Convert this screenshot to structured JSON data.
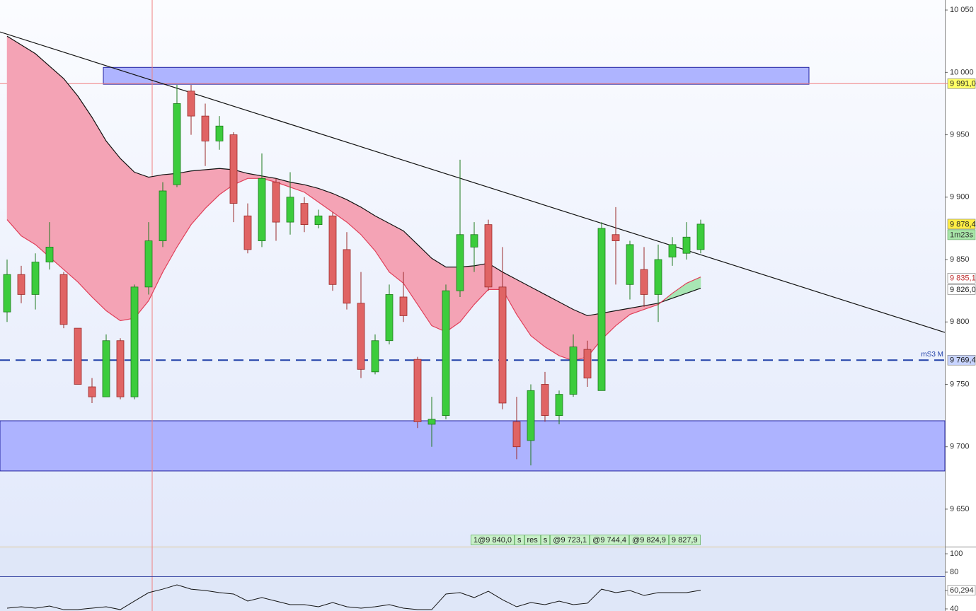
{
  "chart_data": [
    {
      "type": "candlestick",
      "categories": [
        null,
        null,
        null,
        null,
        null,
        null,
        null,
        null,
        null,
        null,
        null,
        null,
        null,
        null,
        null,
        null,
        null,
        null,
        null,
        null,
        null,
        null,
        null,
        null,
        null,
        null,
        null,
        null,
        null,
        null,
        null,
        null,
        null,
        null,
        null,
        null,
        null,
        null,
        null,
        null,
        null,
        null,
        null,
        null,
        null,
        null,
        null,
        null,
        null,
        null
      ],
      "open": [
        9808,
        9838,
        9822,
        9848,
        9838,
        9795,
        9748,
        9740,
        9785,
        9740,
        9828,
        9865,
        9910,
        9985,
        9965,
        9945,
        9950,
        9885,
        9865,
        9912,
        9880,
        9895,
        9878,
        9885,
        9858,
        9815,
        9760,
        9785,
        9820,
        9770,
        9718,
        9725,
        9825,
        9860,
        9878,
        9828,
        9720,
        9705,
        9750,
        9725,
        9742,
        9778,
        9745,
        9870,
        9830,
        9842,
        9822,
        9852,
        9855,
        9858
      ],
      "high": [
        9850,
        9845,
        9855,
        9880,
        9840,
        9795,
        9755,
        9790,
        9787,
        9830,
        9880,
        9912,
        9990,
        9990,
        9975,
        9965,
        9952,
        9895,
        9935,
        9915,
        9920,
        9900,
        9890,
        9888,
        9872,
        9840,
        9790,
        9830,
        9840,
        9772,
        9740,
        9830,
        9930,
        9880,
        9882,
        9860,
        9740,
        9750,
        9760,
        9745,
        9790,
        9785,
        9880,
        9892,
        9865,
        9860,
        9862,
        9868,
        9880,
        9882
      ],
      "low": [
        9800,
        9815,
        9810,
        9842,
        9795,
        9750,
        9735,
        9740,
        9738,
        9738,
        9822,
        9860,
        9908,
        9950,
        9925,
        9938,
        9880,
        9855,
        9860,
        9865,
        9870,
        9872,
        9875,
        9825,
        9810,
        9755,
        9758,
        9782,
        9800,
        9715,
        9700,
        9722,
        9820,
        9840,
        9825,
        9730,
        9690,
        9685,
        9720,
        9718,
        9740,
        9748,
        9745,
        9830,
        9818,
        9812,
        9800,
        9845,
        9850,
        9855
      ],
      "close": [
        9838,
        9822,
        9848,
        9860,
        9798,
        9750,
        9740,
        9785,
        9740,
        9828,
        9865,
        9905,
        9975,
        9965,
        9945,
        9957,
        9895,
        9858,
        9915,
        9880,
        9900,
        9878,
        9885,
        9830,
        9815,
        9762,
        9785,
        9822,
        9805,
        9720,
        9722,
        9825,
        9870,
        9870,
        9828,
        9735,
        9700,
        9745,
        9725,
        9742,
        9780,
        9755,
        9875,
        9865,
        9862,
        9822,
        9850,
        9862,
        9868,
        9878.4
      ],
      "up_color": "#3ccc3c",
      "down_color": "#e06464",
      "series": [
        {
          "color": "#111111",
          "values": [
            10029,
            10022,
            10015,
            10005,
            9995,
            9981,
            9964,
            9945,
            9931,
            9920,
            9916,
            9918,
            9919,
            9921,
            9922,
            9923,
            9922,
            9919,
            9917,
            9915,
            9912,
            9910,
            9907,
            9903,
            9898,
            9892,
            9885,
            9879,
            9873,
            9862,
            9851,
            9844,
            9844,
            9845,
            9847,
            9840,
            9834,
            9828,
            9822,
            9816,
            9810,
            9805,
            9807,
            9809,
            9811,
            9813,
            9815,
            9819,
            9823,
            9827
          ]
        },
        {
          "color": "#e0405a",
          "values": [
            9882,
            9869,
            9862,
            9852,
            9842,
            9832,
            9820,
            9809,
            9801,
            9803,
            9817,
            9840,
            9860,
            9878,
            9891,
            9902,
            9910,
            9915,
            9915,
            9912,
            9908,
            9904,
            9896,
            9888,
            9880,
            9870,
            9857,
            9840,
            9831,
            9814,
            9797,
            9792,
            9800,
            9814,
            9826,
            9826,
            9806,
            9789,
            9780,
            9773,
            9769,
            9772,
            9786,
            9797,
            9806,
            9810,
            9814,
            9823,
            9831,
            9836
          ]
        }
      ],
      "cloud_colors": [
        "#f4a3b5",
        "#a8e6b4"
      ],
      "ylim": [
        9620.5,
        10058
      ],
      "yticks": [
        {
          "value": 9650,
          "label": "9 650"
        },
        {
          "value": 9700,
          "label": "9 700"
        },
        {
          "value": 9750,
          "label": "9 750"
        },
        {
          "value": 9800,
          "label": "9 800"
        },
        {
          "value": 9850,
          "label": "9 850"
        },
        {
          "value": 9900,
          "label": "9 900"
        },
        {
          "value": 9950,
          "label": "9 950"
        },
        {
          "value": 10000,
          "label": "10 000"
        },
        {
          "value": 10050,
          "label": "10 050"
        }
      ],
      "zones": [
        {
          "low": 9990.5,
          "high": 10004,
          "color": "#aab0ff"
        },
        {
          "low": 9680.6,
          "high": 9720.8,
          "color": "#aab0ff"
        }
      ],
      "trendline": [
        10032.4,
        9791.6
      ],
      "crosshair": 9991,
      "level": {
        "value": 9769.4,
        "label": "mS3 M",
        "color": "#1f3fa8"
      },
      "price_tags": [
        {
          "value": 9991,
          "label": "9 991,0",
          "color": "#ffff66"
        },
        {
          "value": 9878.4,
          "label": "9 878,4",
          "color": "#ffee44"
        },
        {
          "value": 9835.1,
          "label": "9 835,1",
          "color": "#ffffff"
        },
        {
          "value": 9826,
          "label": "9 826,0",
          "color": "#ffffff"
        },
        {
          "value": 9769.4,
          "label": "9 769,4",
          "color": "#c8d4ff"
        }
      ],
      "timer": "1m23s",
      "annotations": [
        "1@9 840,0",
        "s",
        "res",
        "s",
        "@9 723,1",
        "@9 744,4",
        "@9 824,9",
        "9 827,9"
      ]
    },
    {
      "type": "line",
      "color": "#111111",
      "values": [
        40.8,
        42.3,
        40.8,
        43.1,
        39.2,
        39.2,
        40.8,
        42.3,
        39.2,
        48.5,
        57.7,
        61.5,
        66.2,
        61.5,
        60,
        57.7,
        56.2,
        48.5,
        52.3,
        48.5,
        44.6,
        44.6,
        42.3,
        46.9,
        42.3,
        40.8,
        42.3,
        44.6,
        40.8,
        39.2,
        39.2,
        56.2,
        57.7,
        52.3,
        59.2,
        50,
        42.3,
        46.9,
        44.6,
        48.5,
        44.6,
        46.2,
        61.5,
        57.7,
        60,
        54.6,
        57.7,
        57.7,
        57.7,
        60.294
      ],
      "value_labels": {
        "49": "60,294"
      },
      "level": 75,
      "ylim": [
        37.7,
        106.2
      ],
      "yticks": [
        40,
        60,
        80,
        100
      ]
    }
  ]
}
